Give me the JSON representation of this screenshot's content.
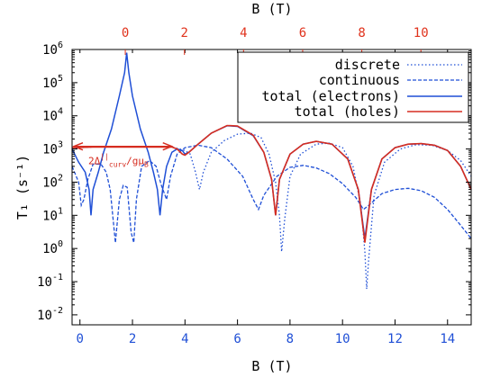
{
  "chart_data": {
    "type": "line",
    "ylabel": "T₁ (s⁻¹)",
    "xlabel_bottom": "B (T)",
    "xlabel_top": "B (T)",
    "x_bottom": {
      "lim": [
        -0.3,
        14.9
      ],
      "ticks": [
        0,
        2,
        4,
        6,
        8,
        10,
        12,
        14
      ]
    },
    "x_top": {
      "lim": [
        -1.8,
        11.7
      ],
      "ticks": [
        0,
        2,
        4,
        6,
        8,
        10
      ]
    },
    "y": {
      "scale": "log",
      "lim": [
        0.005,
        1000000
      ],
      "ticks": [
        0.01,
        0.1,
        1,
        10,
        100,
        1000,
        10000,
        100000,
        1000000
      ]
    },
    "y_tick_labels": [
      {
        "base": "10",
        "exp": "-2"
      },
      {
        "base": "10",
        "exp": "-1"
      },
      {
        "base": "10",
        "exp": "0"
      },
      {
        "base": "10",
        "exp": "1"
      },
      {
        "base": "10",
        "exp": "2"
      },
      {
        "base": "10",
        "exp": "3"
      },
      {
        "base": "10",
        "exp": "4"
      },
      {
        "base": "10",
        "exp": "5"
      },
      {
        "base": "10",
        "exp": "6"
      }
    ],
    "annotation": {
      "text_main": "2Δ",
      "text_sub": "curv",
      "text_sup": "||",
      "text_tail": "/gμ",
      "text_tail_sub": "B",
      "y": 1200,
      "x_from": -0.3,
      "x_to": 3.5
    },
    "colors": {
      "electrons": "#1f4fd6",
      "holes": "#d62d20",
      "axis_bottom": "#1f4fd6",
      "axis_top": "#e0321c"
    },
    "series": [
      {
        "name": "discrete",
        "style": "dotted",
        "axis": "bottom",
        "points": [
          [
            -0.3,
            1000
          ],
          [
            0,
            1100
          ],
          [
            0.5,
            1150
          ],
          [
            1,
            1150
          ],
          [
            1.5,
            1150
          ],
          [
            2,
            1150
          ],
          [
            2.5,
            1150
          ],
          [
            3,
            1150
          ],
          [
            3.5,
            1150
          ],
          [
            3.8,
            1000
          ],
          [
            4.0,
            900
          ],
          [
            4.2,
            700
          ],
          [
            4.4,
            200
          ],
          [
            4.55,
            60
          ],
          [
            4.7,
            200
          ],
          [
            5.0,
            800
          ],
          [
            5.5,
            1800
          ],
          [
            6.0,
            2800
          ],
          [
            6.5,
            3000
          ],
          [
            6.9,
            2200
          ],
          [
            7.2,
            700
          ],
          [
            7.45,
            100
          ],
          [
            7.6,
            10
          ],
          [
            7.68,
            0.8
          ],
          [
            7.8,
            8
          ],
          [
            8.0,
            150
          ],
          [
            8.4,
            700
          ],
          [
            9.0,
            1400
          ],
          [
            9.5,
            1500
          ],
          [
            10.0,
            1100
          ],
          [
            10.4,
            300
          ],
          [
            10.7,
            20
          ],
          [
            10.85,
            0.8
          ],
          [
            10.92,
            0.06
          ],
          [
            11.0,
            0.5
          ],
          [
            11.2,
            40
          ],
          [
            11.6,
            400
          ],
          [
            12.2,
            1000
          ],
          [
            12.8,
            1350
          ],
          [
            13.4,
            1300
          ],
          [
            14.0,
            900
          ],
          [
            14.5,
            450
          ],
          [
            14.9,
            150
          ]
        ]
      },
      {
        "name": "continuous",
        "style": "dashed",
        "axis": "bottom",
        "points": [
          [
            -0.3,
            300
          ],
          [
            -0.05,
            100
          ],
          [
            0.05,
            20
          ],
          [
            0.15,
            30
          ],
          [
            0.3,
            120
          ],
          [
            0.5,
            350
          ],
          [
            0.8,
            350
          ],
          [
            1.0,
            200
          ],
          [
            1.15,
            60
          ],
          [
            1.35,
            1.5
          ],
          [
            1.5,
            30
          ],
          [
            1.65,
            80
          ],
          [
            1.8,
            70
          ],
          [
            1.95,
            3
          ],
          [
            2.05,
            1.5
          ],
          [
            2.15,
            30
          ],
          [
            2.35,
            300
          ],
          [
            2.65,
            450
          ],
          [
            2.9,
            300
          ],
          [
            3.1,
            80
          ],
          [
            3.3,
            30
          ],
          [
            3.45,
            150
          ],
          [
            3.7,
            700
          ],
          [
            4.0,
            1100
          ],
          [
            4.5,
            1300
          ],
          [
            5.0,
            1100
          ],
          [
            5.6,
            500
          ],
          [
            6.2,
            150
          ],
          [
            6.6,
            30
          ],
          [
            6.8,
            15
          ],
          [
            7.0,
            40
          ],
          [
            7.5,
            150
          ],
          [
            8.0,
            280
          ],
          [
            8.5,
            320
          ],
          [
            9.0,
            270
          ],
          [
            9.5,
            180
          ],
          [
            10.0,
            90
          ],
          [
            10.5,
            35
          ],
          [
            10.8,
            15
          ],
          [
            11.0,
            20
          ],
          [
            11.5,
            45
          ],
          [
            12.0,
            60
          ],
          [
            12.5,
            65
          ],
          [
            13.0,
            55
          ],
          [
            13.5,
            35
          ],
          [
            14.0,
            15
          ],
          [
            14.5,
            5
          ],
          [
            14.9,
            2
          ]
        ]
      },
      {
        "name": "total (electrons)",
        "style": "solid",
        "axis": "bottom",
        "points": [
          [
            -0.3,
            1000
          ],
          [
            -0.05,
            400
          ],
          [
            0.2,
            200
          ],
          [
            0.35,
            60
          ],
          [
            0.42,
            10
          ],
          [
            0.5,
            60
          ],
          [
            0.7,
            200
          ],
          [
            0.9,
            800
          ],
          [
            1.2,
            4000
          ],
          [
            1.5,
            40000
          ],
          [
            1.7,
            200000
          ],
          [
            1.78,
            800000
          ],
          [
            1.86,
            200000
          ],
          [
            2.0,
            40000
          ],
          [
            2.3,
            4000
          ],
          [
            2.6,
            800
          ],
          [
            2.8,
            200
          ],
          [
            2.95,
            60
          ],
          [
            3.05,
            10
          ],
          [
            3.15,
            60
          ],
          [
            3.3,
            300
          ],
          [
            3.5,
            800
          ],
          [
            3.7,
            1000
          ],
          [
            3.9,
            900
          ],
          [
            4.0,
            700
          ],
          [
            4.15,
            800
          ],
          [
            4.5,
            1400
          ],
          [
            5.0,
            3000
          ],
          [
            5.6,
            5000
          ],
          [
            6.0,
            4800
          ],
          [
            6.6,
            2500
          ],
          [
            7.0,
            800
          ],
          [
            7.3,
            120
          ],
          [
            7.45,
            10
          ],
          [
            7.6,
            120
          ],
          [
            8.0,
            700
          ],
          [
            8.5,
            1400
          ],
          [
            9.0,
            1700
          ],
          [
            9.6,
            1400
          ],
          [
            10.2,
            500
          ],
          [
            10.6,
            60
          ],
          [
            10.85,
            2
          ],
          [
            11.1,
            60
          ],
          [
            11.5,
            500
          ],
          [
            12.0,
            1100
          ],
          [
            12.5,
            1400
          ],
          [
            13.0,
            1450
          ],
          [
            13.5,
            1300
          ],
          [
            14.0,
            900
          ],
          [
            14.5,
            300
          ],
          [
            14.9,
            60
          ]
        ]
      },
      {
        "name": "total (holes)",
        "style": "solid",
        "axis": "bottom",
        "points": [
          [
            -0.3,
            1100
          ],
          [
            0.5,
            1150
          ],
          [
            1,
            1150
          ],
          [
            2,
            1150
          ],
          [
            3,
            1150
          ],
          [
            3.5,
            1150
          ],
          [
            3.7,
            1000
          ],
          [
            3.9,
            700
          ],
          [
            4.0,
            650
          ],
          [
            4.15,
            800
          ],
          [
            4.5,
            1400
          ],
          [
            5.0,
            3000
          ],
          [
            5.6,
            5100
          ],
          [
            6.0,
            4900
          ],
          [
            6.6,
            2600
          ],
          [
            7.0,
            800
          ],
          [
            7.3,
            120
          ],
          [
            7.45,
            10
          ],
          [
            7.6,
            120
          ],
          [
            8.0,
            700
          ],
          [
            8.5,
            1400
          ],
          [
            9.0,
            1700
          ],
          [
            9.6,
            1400
          ],
          [
            10.2,
            500
          ],
          [
            10.6,
            60
          ],
          [
            10.85,
            1.5
          ],
          [
            11.1,
            60
          ],
          [
            11.5,
            500
          ],
          [
            12.0,
            1100
          ],
          [
            12.5,
            1400
          ],
          [
            13.0,
            1450
          ],
          [
            13.5,
            1300
          ],
          [
            14.0,
            900
          ],
          [
            14.5,
            300
          ],
          [
            14.9,
            60
          ]
        ]
      }
    ],
    "legend_position": "top-right"
  }
}
